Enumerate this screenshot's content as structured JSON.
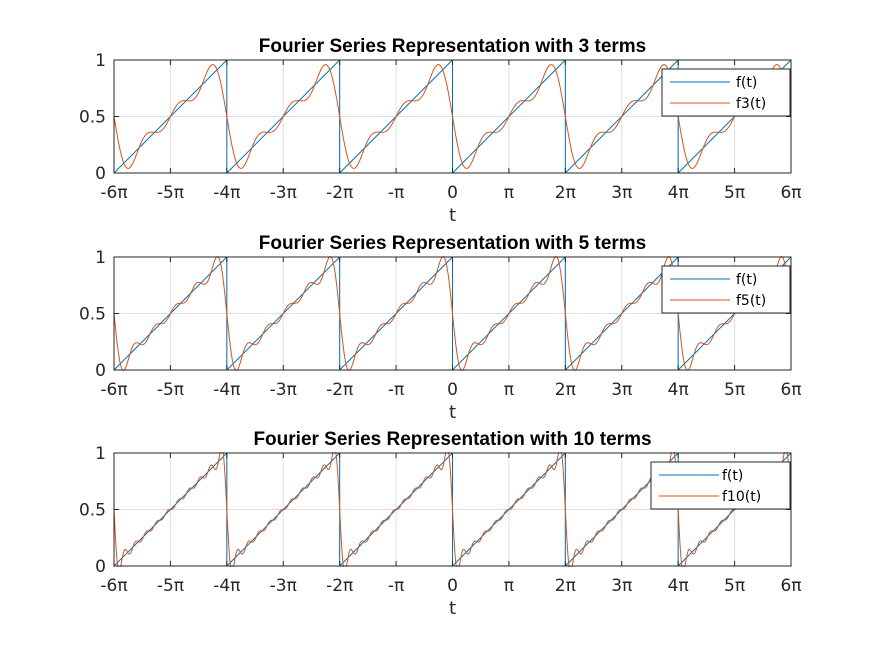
{
  "chart_data": [
    {
      "type": "line",
      "title": "Fourier Series Representation with 3 terms",
      "xlabel": "t",
      "ylabel": "",
      "xlim": [
        -18.8496,
        18.8496
      ],
      "ylim": [
        0,
        1
      ],
      "x_ticks": [
        -18.8496,
        -15.708,
        -12.5664,
        -9.4248,
        -6.2832,
        -3.1416,
        0,
        3.1416,
        6.2832,
        9.4248,
        12.5664,
        15.708,
        18.8496
      ],
      "x_tick_labels": [
        "-6π",
        "-5π",
        "-4π",
        "-3π",
        "-2π",
        "-π",
        "0",
        "π",
        "2π",
        "3π",
        "4π",
        "5π",
        "6π"
      ],
      "y_ticks": [
        0,
        0.5,
        1
      ],
      "y_tick_labels": [
        "0",
        "0.5",
        "1"
      ],
      "grid": true,
      "legend": "top-right",
      "series": [
        {
          "name": "f(t)",
          "kind": "sawtooth",
          "period": 6.2832,
          "color": "#0072BD"
        },
        {
          "name": "f3(t)",
          "kind": "fourier",
          "terms": 3,
          "period": 6.2832,
          "color": "#D95319"
        }
      ]
    },
    {
      "type": "line",
      "title": "Fourier Series Representation with 5 terms",
      "xlabel": "t",
      "ylabel": "",
      "xlim": [
        -18.8496,
        18.8496
      ],
      "ylim": [
        0,
        1
      ],
      "x_ticks": [
        -18.8496,
        -15.708,
        -12.5664,
        -9.4248,
        -6.2832,
        -3.1416,
        0,
        3.1416,
        6.2832,
        9.4248,
        12.5664,
        15.708,
        18.8496
      ],
      "x_tick_labels": [
        "-6π",
        "-5π",
        "-4π",
        "-3π",
        "-2π",
        "-π",
        "0",
        "π",
        "2π",
        "3π",
        "4π",
        "5π",
        "6π"
      ],
      "y_ticks": [
        0,
        0.5,
        1
      ],
      "y_tick_labels": [
        "0",
        "0.5",
        "1"
      ],
      "grid": true,
      "legend": "top-right",
      "series": [
        {
          "name": "f(t)",
          "kind": "sawtooth",
          "period": 6.2832,
          "color": "#0072BD"
        },
        {
          "name": "f5(t)",
          "kind": "fourier",
          "terms": 5,
          "period": 6.2832,
          "color": "#D95319"
        }
      ]
    },
    {
      "type": "line",
      "title": "Fourier Series Representation with 10 terms",
      "xlabel": "t",
      "ylabel": "",
      "xlim": [
        -18.8496,
        18.8496
      ],
      "ylim": [
        0,
        1
      ],
      "x_ticks": [
        -18.8496,
        -15.708,
        -12.5664,
        -9.4248,
        -6.2832,
        -3.1416,
        0,
        3.1416,
        6.2832,
        9.4248,
        12.5664,
        15.708,
        18.8496
      ],
      "x_tick_labels": [
        "-6π",
        "-5π",
        "-4π",
        "-3π",
        "-2π",
        "-π",
        "0",
        "π",
        "2π",
        "3π",
        "4π",
        "5π",
        "6π"
      ],
      "y_ticks": [
        0,
        0.5,
        1
      ],
      "y_tick_labels": [
        "0",
        "0.5",
        "1"
      ],
      "grid": true,
      "legend": "top-right",
      "series": [
        {
          "name": "f(t)",
          "kind": "sawtooth",
          "period": 6.2832,
          "color": "#0072BD"
        },
        {
          "name": "f10(t)",
          "kind": "fourier",
          "terms": 10,
          "period": 6.2832,
          "color": "#D95319"
        }
      ]
    }
  ]
}
